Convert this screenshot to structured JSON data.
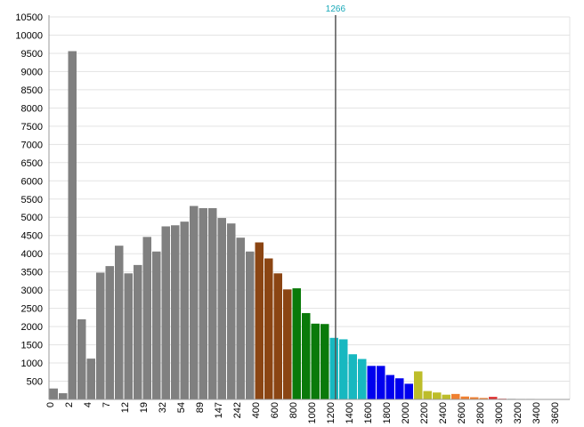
{
  "chart_data": {
    "type": "bar",
    "title": "",
    "xlabel": "",
    "ylabel": "",
    "ylim": [
      0,
      10500
    ],
    "yticks": [
      500,
      1000,
      1500,
      2000,
      2500,
      3000,
      3500,
      4000,
      4500,
      5000,
      5500,
      6000,
      6500,
      7000,
      7500,
      8000,
      8500,
      9000,
      9500,
      10000,
      10500
    ],
    "grid": true,
    "legend": "none",
    "marker": {
      "label": "1266",
      "color": "#17a8b8",
      "line_color": "#555555"
    },
    "xticks": [
      {
        "label": "0",
        "bin": 0
      },
      {
        "label": "2",
        "bin": 2
      },
      {
        "label": "4",
        "bin": 4
      },
      {
        "label": "7",
        "bin": 6
      },
      {
        "label": "12",
        "bin": 8
      },
      {
        "label": "19",
        "bin": 10
      },
      {
        "label": "32",
        "bin": 12
      },
      {
        "label": "54",
        "bin": 14
      },
      {
        "label": "89",
        "bin": 16
      },
      {
        "label": "147",
        "bin": 18
      },
      {
        "label": "242",
        "bin": 20
      },
      {
        "label": "400",
        "bin": 22
      },
      {
        "label": "600",
        "bin": 24
      },
      {
        "label": "800",
        "bin": 26
      },
      {
        "label": "1000",
        "bin": 28
      },
      {
        "label": "1200",
        "bin": 30
      },
      {
        "label": "1400",
        "bin": 32
      },
      {
        "label": "1600",
        "bin": 34
      },
      {
        "label": "1800",
        "bin": 36
      },
      {
        "label": "2000",
        "bin": 38
      },
      {
        "label": "2200",
        "bin": 40
      },
      {
        "label": "2400",
        "bin": 42
      },
      {
        "label": "2600",
        "bin": 44
      },
      {
        "label": "2800",
        "bin": 46
      },
      {
        "label": "3000",
        "bin": 48
      },
      {
        "label": "3200",
        "bin": 50
      },
      {
        "label": "3400",
        "bin": 52
      },
      {
        "label": "3600",
        "bin": 54
      }
    ],
    "values": [
      300,
      170,
      9560,
      2200,
      1120,
      3480,
      3660,
      4220,
      3460,
      3690,
      4460,
      4060,
      4750,
      4780,
      4880,
      5310,
      5250,
      5250,
      4980,
      4830,
      4440,
      4060,
      4310,
      3870,
      3460,
      3020,
      3050,
      2370,
      2080,
      2070,
      1690,
      1650,
      1240,
      1110,
      920,
      920,
      670,
      580,
      430,
      770,
      230,
      190,
      130,
      150,
      80,
      60,
      40,
      70,
      20,
      20,
      15,
      15,
      10,
      10,
      10
    ],
    "colors": [
      "#808080",
      "#808080",
      "#808080",
      "#808080",
      "#808080",
      "#808080",
      "#808080",
      "#808080",
      "#808080",
      "#808080",
      "#808080",
      "#808080",
      "#808080",
      "#808080",
      "#808080",
      "#808080",
      "#808080",
      "#808080",
      "#808080",
      "#808080",
      "#808080",
      "#808080",
      "#8b4513",
      "#8b4513",
      "#8b4513",
      "#8b4513",
      "#0a7a0a",
      "#0a7a0a",
      "#0a7a0a",
      "#0a7a0a",
      "#17b8c0",
      "#17b8c0",
      "#17b8c0",
      "#17b8c0",
      "#0000ee",
      "#0000ee",
      "#0000ee",
      "#0000ee",
      "#0000ee",
      "#bdbd2a",
      "#bdbd2a",
      "#bdbd2a",
      "#bdbd2a",
      "#f08030",
      "#f08030",
      "#f08030",
      "#f08030",
      "#e03030",
      "#e03030",
      "#c0c0c0",
      "#c0c0c0",
      "#c0c0c0",
      "#c0c0c0",
      "#c0c0c0",
      "#c0c0c0"
    ]
  }
}
